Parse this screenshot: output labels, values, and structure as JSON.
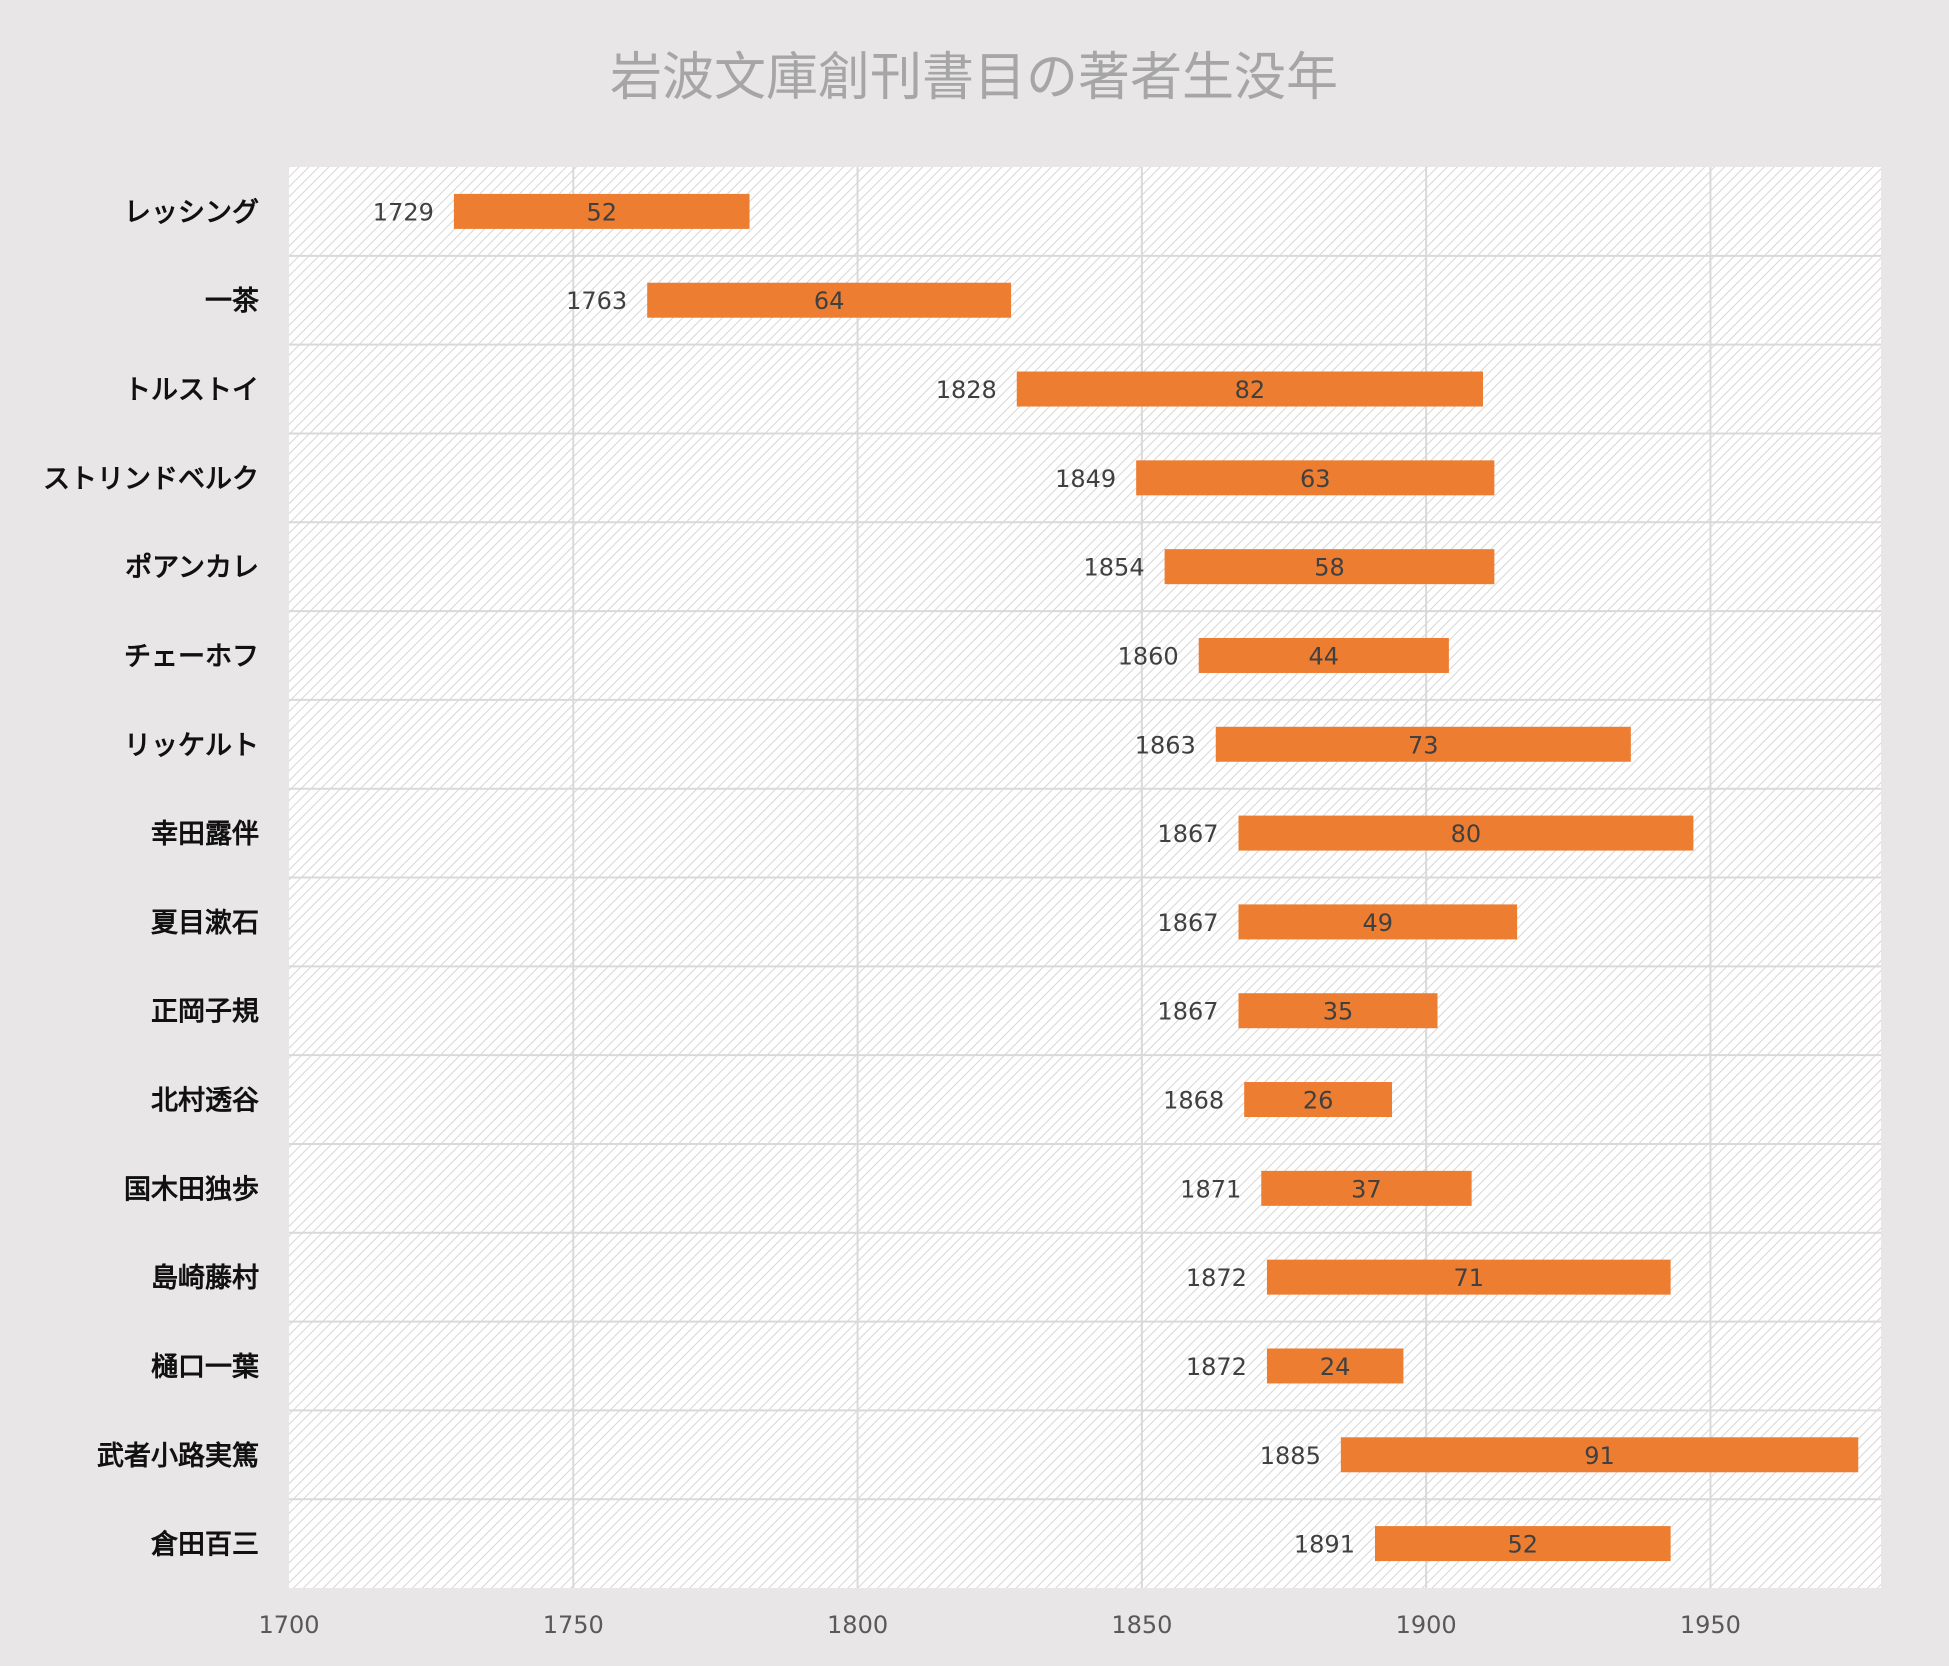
{
  "chart_data": {
    "type": "bar",
    "subtype": "floating-horizontal-bar",
    "title": "岩波文庫創刊書目の著者生没年",
    "xlabel": "",
    "ylabel": "",
    "xlim": [
      1700,
      1980
    ],
    "xticks": [
      1700,
      1750,
      1800,
      1850,
      1900,
      1950
    ],
    "grid": true,
    "legend": "none",
    "bar_color": "#ed7d31",
    "categories": [
      "レッシング",
      "一茶",
      "トルストイ",
      "ストリンドベルク",
      "ポアンカレ",
      "チェーホフ",
      "リッケルト",
      "幸田露伴",
      "夏目漱石",
      "正岡子規",
      "北村透谷",
      "国木田独歩",
      "島崎藤村",
      "樋口一葉",
      "武者小路実篤",
      "倉田百三"
    ],
    "series": [
      {
        "values": [
          1729,
          1763,
          1828,
          1849,
          1854,
          1860,
          1863,
          1867,
          1867,
          1867,
          1868,
          1871,
          1872,
          1872,
          1885,
          1891
        ]
      },
      {
        "values": [
          52,
          64,
          82,
          63,
          58,
          44,
          73,
          80,
          49,
          35,
          26,
          37,
          71,
          24,
          91,
          52
        ]
      }
    ]
  }
}
